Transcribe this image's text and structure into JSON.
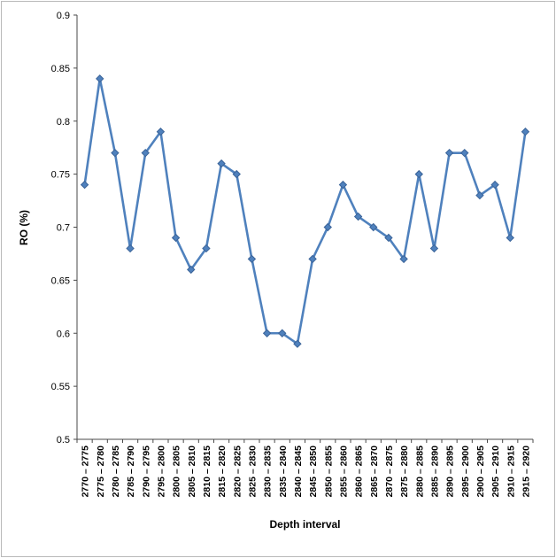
{
  "chart_data": {
    "type": "line",
    "title": "",
    "xlabel": "Depth interval",
    "ylabel": "RO (%)",
    "ylim": [
      0.5,
      0.9
    ],
    "ytick_labels": [
      "0.5",
      "0.55",
      "0.6",
      "0.65",
      "0.7",
      "0.75",
      "0.8",
      "0.85",
      "0.9"
    ],
    "yticks": [
      0.5,
      0.55,
      0.6,
      0.65,
      0.7,
      0.75,
      0.8,
      0.85,
      0.9
    ],
    "grid": false,
    "legend_position": "none",
    "line_color": "#4F81BD",
    "marker": "diamond",
    "marker_color": "#4F81BD",
    "axis_color": "#4a4a4a",
    "categories": [
      "2770 – 2775",
      "2775 – 2780",
      "2780 – 2785",
      "2785 – 2790",
      "2790 – 2795",
      "2795 – 2800",
      "2800 – 2805",
      "2805 – 2810",
      "2810 – 2815",
      "2815 – 2820",
      "2820 – 2825",
      "2825 – 2830",
      "2830 – 2835",
      "2835 – 2840",
      "2840 – 2845",
      "2845 – 2850",
      "2850 – 2855",
      "2855 – 2860",
      "2860 – 2865",
      "2865 – 2870",
      "2870 – 2875",
      "2875 – 2880",
      "2880 – 2885",
      "2885 – 2890",
      "2890 – 2895",
      "2895 – 2900",
      "2900 – 2905",
      "2905 – 2910",
      "2910 – 2915",
      "2915 – 2920"
    ],
    "values": [
      0.74,
      0.84,
      0.77,
      0.68,
      0.77,
      0.79,
      0.69,
      0.66,
      0.68,
      0.76,
      0.75,
      0.67,
      0.6,
      0.6,
      0.59,
      0.67,
      0.7,
      0.74,
      0.71,
      0.7,
      0.69,
      0.67,
      0.75,
      0.68,
      0.77,
      0.77,
      0.73,
      0.74,
      0.69,
      0.79
    ]
  },
  "frame": {
    "background": "#ffffff",
    "border_color": "#b9b9b9"
  }
}
